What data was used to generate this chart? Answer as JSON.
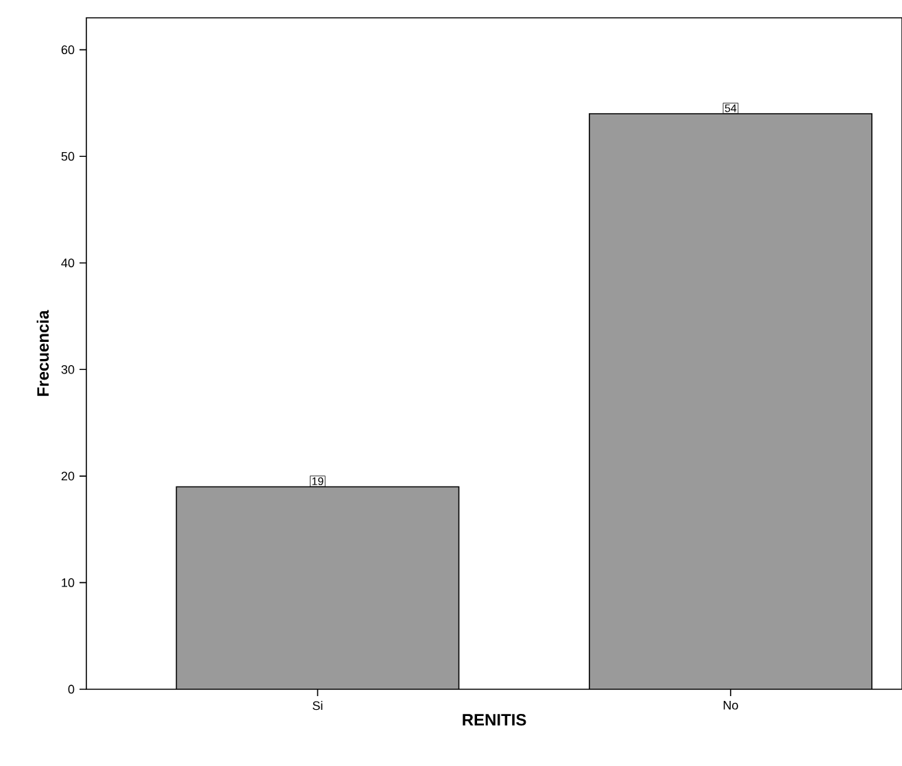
{
  "chart_data": {
    "type": "bar",
    "xlabel": "RENITIS",
    "ylabel": "Frecuencia",
    "categories": [
      "Si",
      "No"
    ],
    "values": [
      19,
      54
    ],
    "value_labels": [
      "19",
      "54"
    ],
    "color": "#9a9a9a",
    "ylim": [
      0,
      63
    ],
    "yticks": [
      0,
      10,
      20,
      30,
      40,
      50,
      60
    ]
  }
}
